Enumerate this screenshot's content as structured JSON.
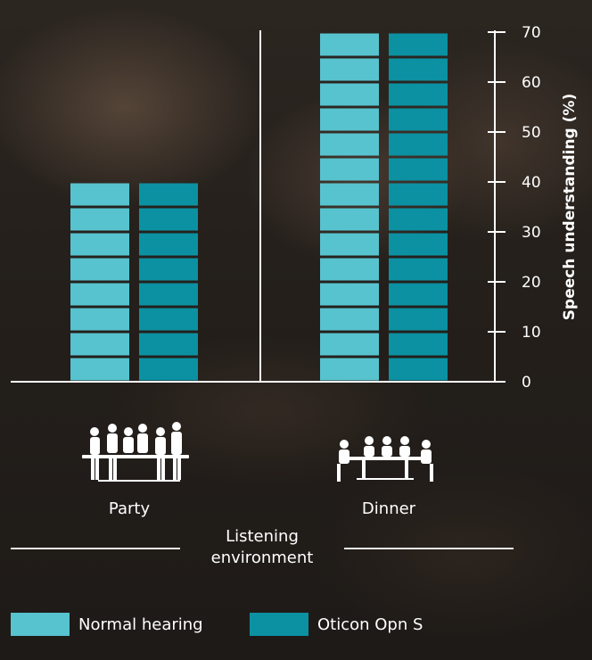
{
  "chart_data": {
    "type": "bar",
    "categories": [
      "Party",
      "Dinner"
    ],
    "series": [
      {
        "name": "Normal hearing",
        "values": [
          40,
          70
        ],
        "color": "#57c3cf"
      },
      {
        "name": "Oticon Opn S",
        "values": [
          40,
          70
        ],
        "color": "#0b91a2"
      }
    ],
    "xlabel": "Listening environment",
    "ylabel": "Speech understanding (%)",
    "ylim": [
      0,
      70
    ],
    "yticks": [
      0,
      10,
      20,
      30,
      40,
      50,
      60,
      70
    ],
    "y_axis_side": "right",
    "bar_segment": 5,
    "grid": false,
    "legend_position": "bottom-left"
  },
  "icons": {
    "party": "party-people-icon",
    "dinner": "dinner-table-icon"
  }
}
